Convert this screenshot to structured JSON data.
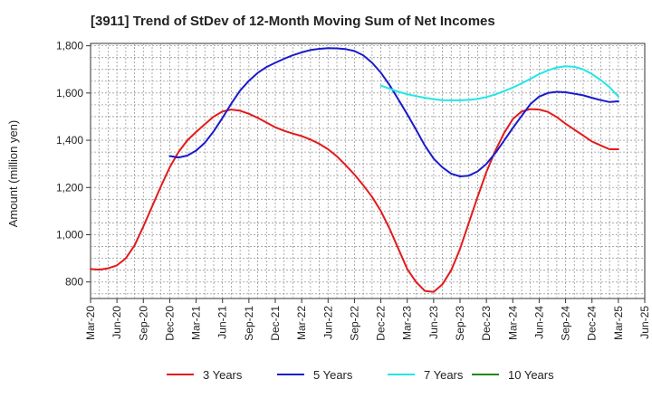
{
  "chart_data": {
    "type": "line",
    "title": "[3911]  Trend of StDev of 12-Month Moving Sum of Net Incomes",
    "xlabel": "",
    "ylabel": "Amount (million yen)",
    "ylim": [
      730,
      1810
    ],
    "y_ticks": [
      800,
      1000,
      1200,
      1400,
      1600,
      1800
    ],
    "y_tick_labels": [
      "800",
      "1,000",
      "1,200",
      "1,400",
      "1,600",
      "1,800"
    ],
    "x_ticks": [
      "Mar-20",
      "Jun-20",
      "Sep-20",
      "Dec-20",
      "Mar-21",
      "Jun-21",
      "Sep-21",
      "Dec-21",
      "Mar-22",
      "Jun-22",
      "Sep-22",
      "Dec-22",
      "Mar-23",
      "Jun-23",
      "Sep-23",
      "Dec-23",
      "Mar-24",
      "Jun-24",
      "Sep-24",
      "Dec-24",
      "Mar-25",
      "Jun-25"
    ],
    "grid": true,
    "legend_position": "bottom",
    "series": [
      {
        "name": "3 Years",
        "color": "#e31a1c",
        "x": [
          "Mar-20",
          "Apr-20",
          "May-20",
          "Jun-20",
          "Jul-20",
          "Aug-20",
          "Sep-20",
          "Oct-20",
          "Nov-20",
          "Dec-20",
          "Jan-21",
          "Feb-21",
          "Mar-21",
          "Apr-21",
          "May-21",
          "Jun-21",
          "Jul-21",
          "Aug-21",
          "Sep-21",
          "Oct-21",
          "Nov-21",
          "Dec-21",
          "Jan-22",
          "Feb-22",
          "Mar-22",
          "Apr-22",
          "May-22",
          "Jun-22",
          "Jul-22",
          "Aug-22",
          "Sep-22",
          "Oct-22",
          "Nov-22",
          "Dec-22",
          "Jan-23",
          "Feb-23",
          "Mar-23",
          "Apr-23",
          "May-23",
          "Jun-23",
          "Jul-23",
          "Aug-23",
          "Sep-23",
          "Oct-23",
          "Nov-23",
          "Dec-23",
          "Jan-24",
          "Feb-24",
          "Mar-24",
          "Apr-24",
          "May-24",
          "Jun-24",
          "Jul-24",
          "Aug-24",
          "Sep-24",
          "Oct-24",
          "Nov-24",
          "Dec-24",
          "Jan-25",
          "Feb-25",
          "Mar-25"
        ],
        "values": [
          855,
          852,
          858,
          870,
          900,
          955,
          1035,
          1120,
          1205,
          1285,
          1350,
          1400,
          1435,
          1468,
          1500,
          1522,
          1530,
          1525,
          1512,
          1495,
          1475,
          1455,
          1440,
          1428,
          1418,
          1403,
          1385,
          1362,
          1332,
          1295,
          1255,
          1210,
          1160,
          1100,
          1025,
          940,
          855,
          800,
          762,
          758,
          790,
          850,
          940,
          1050,
          1160,
          1265,
          1355,
          1430,
          1490,
          1522,
          1532,
          1530,
          1520,
          1498,
          1470,
          1445,
          1420,
          1395,
          1378,
          1362,
          1362
        ]
      },
      {
        "name": "5 Years",
        "color": "#1a1acc",
        "x": [
          "Dec-20",
          "Jan-21",
          "Feb-21",
          "Mar-21",
          "Apr-21",
          "May-21",
          "Jun-21",
          "Jul-21",
          "Aug-21",
          "Sep-21",
          "Oct-21",
          "Nov-21",
          "Dec-21",
          "Jan-22",
          "Feb-22",
          "Mar-22",
          "Apr-22",
          "May-22",
          "Jun-22",
          "Jul-22",
          "Aug-22",
          "Sep-22",
          "Oct-22",
          "Nov-22",
          "Dec-22",
          "Jan-23",
          "Feb-23",
          "Mar-23",
          "Apr-23",
          "May-23",
          "Jun-23",
          "Jul-23",
          "Aug-23",
          "Sep-23",
          "Oct-23",
          "Nov-23",
          "Dec-23",
          "Jan-24",
          "Feb-24",
          "Mar-24",
          "Apr-24",
          "May-24",
          "Jun-24",
          "Jul-24",
          "Aug-24",
          "Sep-24",
          "Oct-24",
          "Nov-24",
          "Dec-24",
          "Jan-25",
          "Feb-25",
          "Mar-25"
        ],
        "values": [
          1333,
          1327,
          1335,
          1356,
          1390,
          1438,
          1495,
          1555,
          1610,
          1652,
          1685,
          1710,
          1728,
          1745,
          1760,
          1772,
          1782,
          1787,
          1790,
          1789,
          1786,
          1778,
          1760,
          1728,
          1686,
          1633,
          1572,
          1510,
          1445,
          1378,
          1322,
          1285,
          1258,
          1247,
          1250,
          1268,
          1300,
          1345,
          1398,
          1452,
          1503,
          1553,
          1585,
          1600,
          1605,
          1603,
          1597,
          1590,
          1580,
          1570,
          1562,
          1565
        ]
      },
      {
        "name": "7 Years",
        "color": "#22e6e6",
        "x": [
          "Dec-22",
          "Jan-23",
          "Feb-23",
          "Mar-23",
          "Apr-23",
          "May-23",
          "Jun-23",
          "Jul-23",
          "Aug-23",
          "Sep-23",
          "Oct-23",
          "Nov-23",
          "Dec-23",
          "Jan-24",
          "Feb-24",
          "Mar-24",
          "Apr-24",
          "May-24",
          "Jun-24",
          "Jul-24",
          "Aug-24",
          "Sep-24",
          "Oct-24",
          "Nov-24",
          "Dec-24",
          "Jan-25",
          "Feb-25",
          "Mar-25"
        ],
        "values": [
          1631,
          1618,
          1605,
          1595,
          1587,
          1580,
          1574,
          1570,
          1569,
          1569,
          1571,
          1575,
          1583,
          1594,
          1608,
          1623,
          1641,
          1660,
          1680,
          1696,
          1708,
          1713,
          1711,
          1700,
          1680,
          1655,
          1625,
          1585
        ]
      },
      {
        "name": "10 Years",
        "color": "#1a8a1a",
        "x": [],
        "values": []
      }
    ]
  }
}
